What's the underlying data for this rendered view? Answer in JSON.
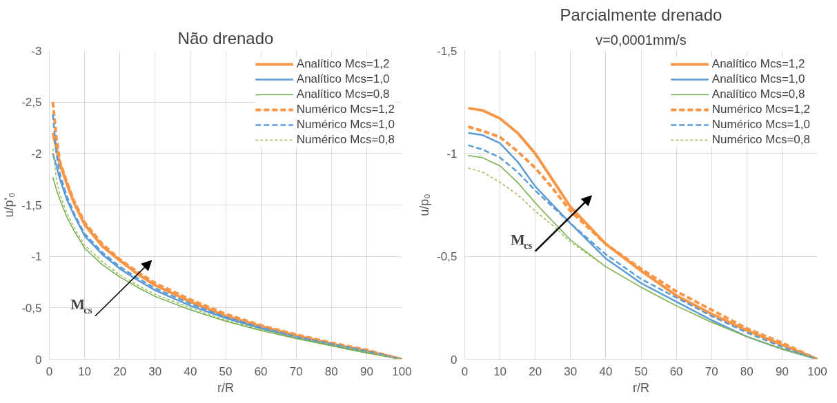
{
  "chart_data": [
    {
      "type": "line",
      "title": "Não drenado",
      "xlabel": "r/R",
      "ylabel": "u/p'₀",
      "xlim": [
        0,
        100
      ],
      "ylim": [
        0,
        -3
      ],
      "xticks": [
        0,
        10,
        20,
        30,
        40,
        50,
        60,
        70,
        80,
        90,
        100
      ],
      "yticks": [
        {
          "value": -3,
          "label": "-3"
        },
        {
          "value": -2.5,
          "label": "-2,5"
        },
        {
          "value": -2,
          "label": "-2"
        },
        {
          "value": -1.5,
          "label": "-1,5"
        },
        {
          "value": -1,
          "label": "-1"
        },
        {
          "value": -0.5,
          "label": "-0,5"
        },
        {
          "value": 0,
          "label": "0"
        }
      ],
      "grid": true,
      "legend": "top right",
      "x": [
        1,
        2,
        3,
        5,
        7,
        10,
        15,
        20,
        25,
        30,
        40,
        50,
        60,
        70,
        80,
        90,
        100
      ],
      "series": [
        {
          "name": "Analítico Mcs=1,2",
          "color": "#f79646",
          "line_style": "solid",
          "values": [
            -2.2,
            -2.05,
            -1.9,
            -1.7,
            -1.52,
            -1.31,
            -1.1,
            -0.96,
            -0.83,
            -0.72,
            -0.56,
            -0.42,
            -0.32,
            -0.23,
            -0.15,
            -0.08,
            0
          ]
        },
        {
          "name": "Analítico Mcs=1,0",
          "color": "#5b9bd5",
          "line_style": "solid",
          "values": [
            -2.0,
            -1.88,
            -1.75,
            -1.55,
            -1.4,
            -1.2,
            -1.02,
            -0.88,
            -0.77,
            -0.67,
            -0.52,
            -0.4,
            -0.3,
            -0.21,
            -0.14,
            -0.07,
            0
          ]
        },
        {
          "name": "Analítico Mcs=0,8",
          "color": "#70ad47",
          "line_style": "solid",
          "values": [
            -1.77,
            -1.65,
            -1.55,
            -1.38,
            -1.25,
            -1.08,
            -0.92,
            -0.8,
            -0.7,
            -0.61,
            -0.48,
            -0.37,
            -0.28,
            -0.2,
            -0.13,
            -0.06,
            0
          ]
        },
        {
          "name": "Numérico Mcs=1,2",
          "color": "#f79646",
          "line_style": "dashed",
          "values": [
            -2.5,
            -2.15,
            -1.92,
            -1.72,
            -1.54,
            -1.33,
            -1.12,
            -0.97,
            -0.85,
            -0.74,
            -0.58,
            -0.44,
            -0.33,
            -0.24,
            -0.16,
            -0.09,
            0
          ]
        },
        {
          "name": "Numérico Mcs=1,0",
          "color": "#5b9bd5",
          "line_style": "dashed",
          "values": [
            -2.38,
            -2.0,
            -1.8,
            -1.58,
            -1.42,
            -1.22,
            -1.04,
            -0.9,
            -0.79,
            -0.69,
            -0.54,
            -0.41,
            -0.31,
            -0.22,
            -0.15,
            -0.08,
            0
          ]
        },
        {
          "name": "Numérico Mcs=0,8",
          "color": "#9bbb59",
          "line_style": "dotted",
          "values": [
            -2.05,
            -1.75,
            -1.6,
            -1.42,
            -1.28,
            -1.11,
            -0.95,
            -0.82,
            -0.72,
            -0.63,
            -0.5,
            -0.38,
            -0.29,
            -0.21,
            -0.14,
            -0.07,
            0
          ]
        }
      ],
      "annotations": [
        "M$_{cs}$"
      ]
    },
    {
      "type": "line",
      "title": "Parcialmente drenado",
      "subtitle": "v=0,0001mm/s",
      "xlabel": "r/R",
      "ylabel": "u/p₀",
      "xlim": [
        0,
        100
      ],
      "ylim": [
        0,
        -1.5
      ],
      "xticks": [
        0,
        10,
        20,
        30,
        40,
        50,
        60,
        70,
        80,
        90,
        100
      ],
      "yticks": [
        {
          "value": -1.5,
          "label": "-1,5"
        },
        {
          "value": -1,
          "label": "-1"
        },
        {
          "value": -0.5,
          "label": "-0,5"
        },
        {
          "value": 0,
          "label": "0"
        }
      ],
      "grid": true,
      "legend": "top right",
      "x": [
        1,
        5,
        10,
        15,
        20,
        25,
        30,
        40,
        50,
        60,
        70,
        80,
        90,
        100
      ],
      "series": [
        {
          "name": "Analítico Mcs=1,2",
          "color": "#f79646",
          "line_style": "solid",
          "values": [
            -1.22,
            -1.21,
            -1.17,
            -1.1,
            -1.0,
            -0.87,
            -0.74,
            -0.56,
            -0.43,
            -0.31,
            -0.22,
            -0.14,
            -0.07,
            0
          ]
        },
        {
          "name": "Analítico Mcs=1,0",
          "color": "#5b9bd5",
          "line_style": "solid",
          "values": [
            -1.1,
            -1.09,
            -1.05,
            -0.96,
            -0.84,
            -0.75,
            -0.66,
            -0.49,
            -0.37,
            -0.28,
            -0.19,
            -0.11,
            -0.05,
            0
          ]
        },
        {
          "name": "Analítico Mcs=0,8",
          "color": "#70ad47",
          "line_style": "solid",
          "values": [
            -0.99,
            -0.98,
            -0.94,
            -0.86,
            -0.76,
            -0.67,
            -0.58,
            -0.45,
            -0.35,
            -0.26,
            -0.18,
            -0.11,
            -0.05,
            0
          ]
        },
        {
          "name": "Numérico Mcs=1,2",
          "color": "#f79646",
          "line_style": "dashed",
          "values": [
            -1.13,
            -1.11,
            -1.08,
            -1.01,
            -0.93,
            -0.83,
            -0.72,
            -0.56,
            -0.44,
            -0.33,
            -0.24,
            -0.15,
            -0.08,
            0
          ]
        },
        {
          "name": "Numérico Mcs=1,0",
          "color": "#5b9bd5",
          "line_style": "dashed",
          "values": [
            -1.04,
            -1.02,
            -0.98,
            -0.91,
            -0.82,
            -0.74,
            -0.66,
            -0.51,
            -0.39,
            -0.3,
            -0.21,
            -0.13,
            -0.06,
            0
          ]
        },
        {
          "name": "Numérico Mcs=0,8",
          "color": "#9bbb59",
          "line_style": "dotted",
          "values": [
            -0.93,
            -0.91,
            -0.86,
            -0.8,
            -0.72,
            -0.65,
            -0.57,
            -0.45,
            -0.35,
            -0.26,
            -0.18,
            -0.11,
            -0.05,
            0
          ]
        }
      ],
      "annotations": [
        "M$_{cs}$"
      ]
    }
  ]
}
